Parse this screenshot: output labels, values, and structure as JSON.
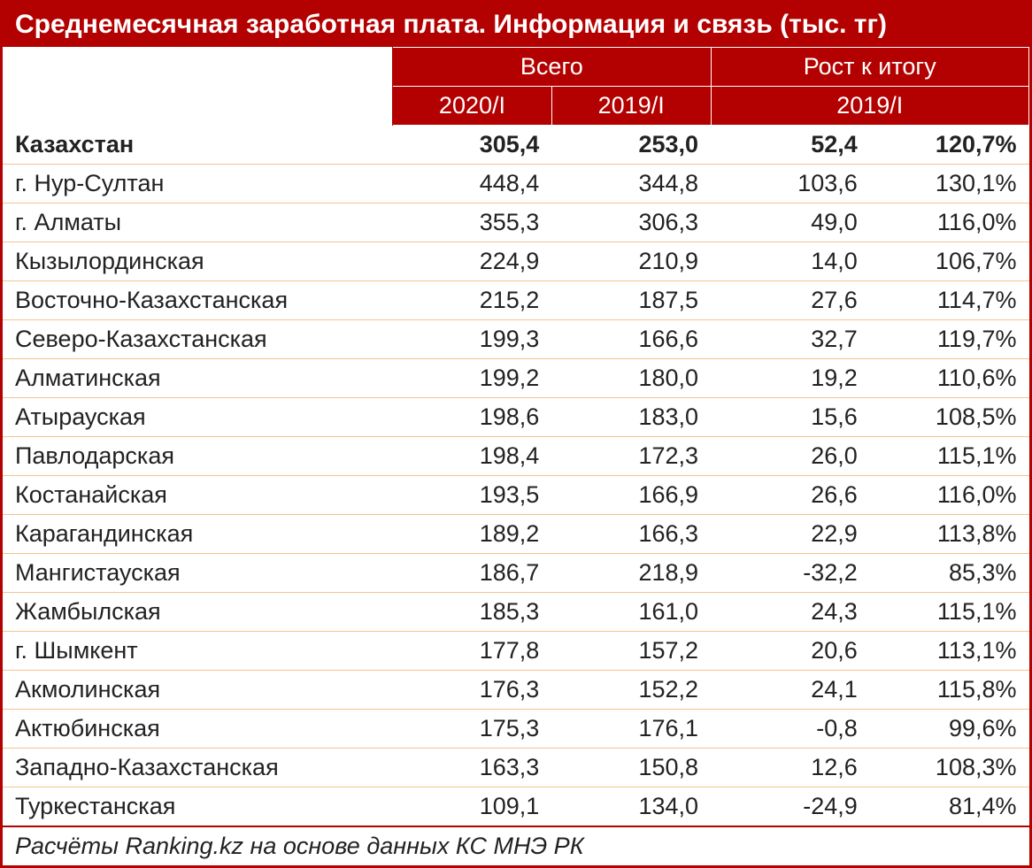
{
  "title": "Среднемесячная заработная плата. Информация и связь (тыс. тг)",
  "headers": {
    "total_group": "Всего",
    "growth_group": "Рост к итогу",
    "col_2020": "2020/I",
    "col_2019": "2019/I",
    "col_growth_period": "2019/I"
  },
  "rows": [
    {
      "name": "Казахстан",
      "v2020": "305,4",
      "v2019": "253,0",
      "abs": "52,4",
      "pct": "120,7%",
      "total": true
    },
    {
      "name": "г. Нур-Султан",
      "v2020": "448,4",
      "v2019": "344,8",
      "abs": "103,6",
      "pct": "130,1%"
    },
    {
      "name": "г. Алматы",
      "v2020": "355,3",
      "v2019": "306,3",
      "abs": "49,0",
      "pct": "116,0%"
    },
    {
      "name": "Кызылординская",
      "v2020": "224,9",
      "v2019": "210,9",
      "abs": "14,0",
      "pct": "106,7%"
    },
    {
      "name": "Восточно-Казахстанская",
      "v2020": "215,2",
      "v2019": "187,5",
      "abs": "27,6",
      "pct": "114,7%"
    },
    {
      "name": "Северо-Казахстанская",
      "v2020": "199,3",
      "v2019": "166,6",
      "abs": "32,7",
      "pct": "119,7%"
    },
    {
      "name": "Алматинская",
      "v2020": "199,2",
      "v2019": "180,0",
      "abs": "19,2",
      "pct": "110,6%"
    },
    {
      "name": "Атырауская",
      "v2020": "198,6",
      "v2019": "183,0",
      "abs": "15,6",
      "pct": "108,5%"
    },
    {
      "name": "Павлодарская",
      "v2020": "198,4",
      "v2019": "172,3",
      "abs": "26,0",
      "pct": "115,1%"
    },
    {
      "name": "Костанайская",
      "v2020": "193,5",
      "v2019": "166,9",
      "abs": "26,6",
      "pct": "116,0%"
    },
    {
      "name": "Карагандинская",
      "v2020": "189,2",
      "v2019": "166,3",
      "abs": "22,9",
      "pct": "113,8%"
    },
    {
      "name": "Мангистауская",
      "v2020": "186,7",
      "v2019": "218,9",
      "abs": "-32,2",
      "pct": "85,3%"
    },
    {
      "name": "Жамбылская",
      "v2020": "185,3",
      "v2019": "161,0",
      "abs": "24,3",
      "pct": "115,1%"
    },
    {
      "name": "г. Шымкент",
      "v2020": "177,8",
      "v2019": "157,2",
      "abs": "20,6",
      "pct": "113,1%"
    },
    {
      "name": "Акмолинская",
      "v2020": "176,3",
      "v2019": "152,2",
      "abs": "24,1",
      "pct": "115,8%"
    },
    {
      "name": "Актюбинская",
      "v2020": "175,3",
      "v2019": "176,1",
      "abs": "-0,8",
      "pct": "99,6%"
    },
    {
      "name": "Западно-Казахстанская",
      "v2020": "163,3",
      "v2019": "150,8",
      "abs": "12,6",
      "pct": "108,3%"
    },
    {
      "name": "Туркестанская",
      "v2020": "109,1",
      "v2019": "134,0",
      "abs": "-24,9",
      "pct": "81,4%"
    }
  ],
  "footer": "Расчёты Ranking.kz на основе данных КС МНЭ РК",
  "style": {
    "type": "table",
    "header_bg": "#b30000",
    "header_fg": "#ffffff",
    "row_border": "#f6c28e",
    "outer_border": "#b30000",
    "body_fg": "#222222",
    "title_fontsize_pt": 22,
    "header_fontsize_pt": 20,
    "body_fontsize_pt": 20,
    "footer_fontsize_pt": 20,
    "footer_style": "italic",
    "col_widths_pct": [
      38,
      15.5,
      15.5,
      15.5,
      15.5
    ],
    "text_align": {
      "name": "left",
      "numbers": "right"
    },
    "total_row_weight": "bold"
  }
}
